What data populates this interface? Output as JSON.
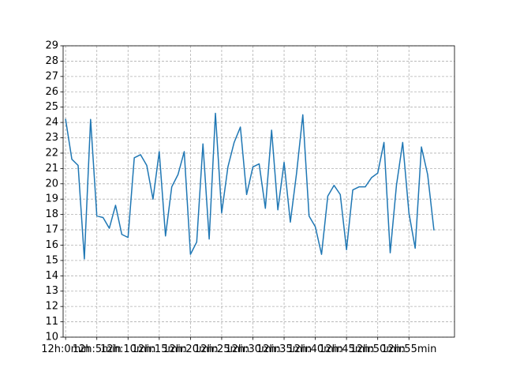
{
  "chart_data": {
    "type": "line",
    "title": "",
    "xlabel": "",
    "ylabel": "",
    "x_ticks": [
      "12h:0min",
      "12h:5min",
      "12h:10min",
      "12h:15min",
      "12h:20min",
      "12h:25min",
      "12h:30min",
      "12h:35min",
      "12h:40min",
      "12h:45min",
      "12h:50min",
      "12h:55min"
    ],
    "xlim": [
      -0.4,
      62.3
    ],
    "ylim": [
      10,
      29
    ],
    "y_ticks": [
      10,
      11,
      12,
      13,
      14,
      15,
      16,
      17,
      18,
      19,
      20,
      21,
      22,
      23,
      24,
      25,
      26,
      27,
      28,
      29
    ],
    "grid": true,
    "series": [
      {
        "color": "#1f77b4",
        "x_unit": "minute",
        "values": [
          24.2,
          21.6,
          21.2,
          15.1,
          24.2,
          17.9,
          17.8,
          17.1,
          18.6,
          16.7,
          16.5,
          21.7,
          21.9,
          21.2,
          19.0,
          22.1,
          16.6,
          19.8,
          20.6,
          22.1,
          15.4,
          16.2,
          22.6,
          16.4,
          24.6,
          18.1,
          21.1,
          22.7,
          23.7,
          19.3,
          21.1,
          21.3,
          18.4,
          23.5,
          18.3,
          21.4,
          17.5,
          20.7,
          24.5,
          17.9,
          17.2,
          15.4,
          19.2,
          19.9,
          19.3,
          15.7,
          19.6,
          19.8,
          19.8,
          20.4,
          20.7,
          22.7,
          15.5,
          19.9,
          22.7,
          18.1,
          15.8,
          22.4,
          20.6,
          17.0
        ]
      }
    ]
  }
}
